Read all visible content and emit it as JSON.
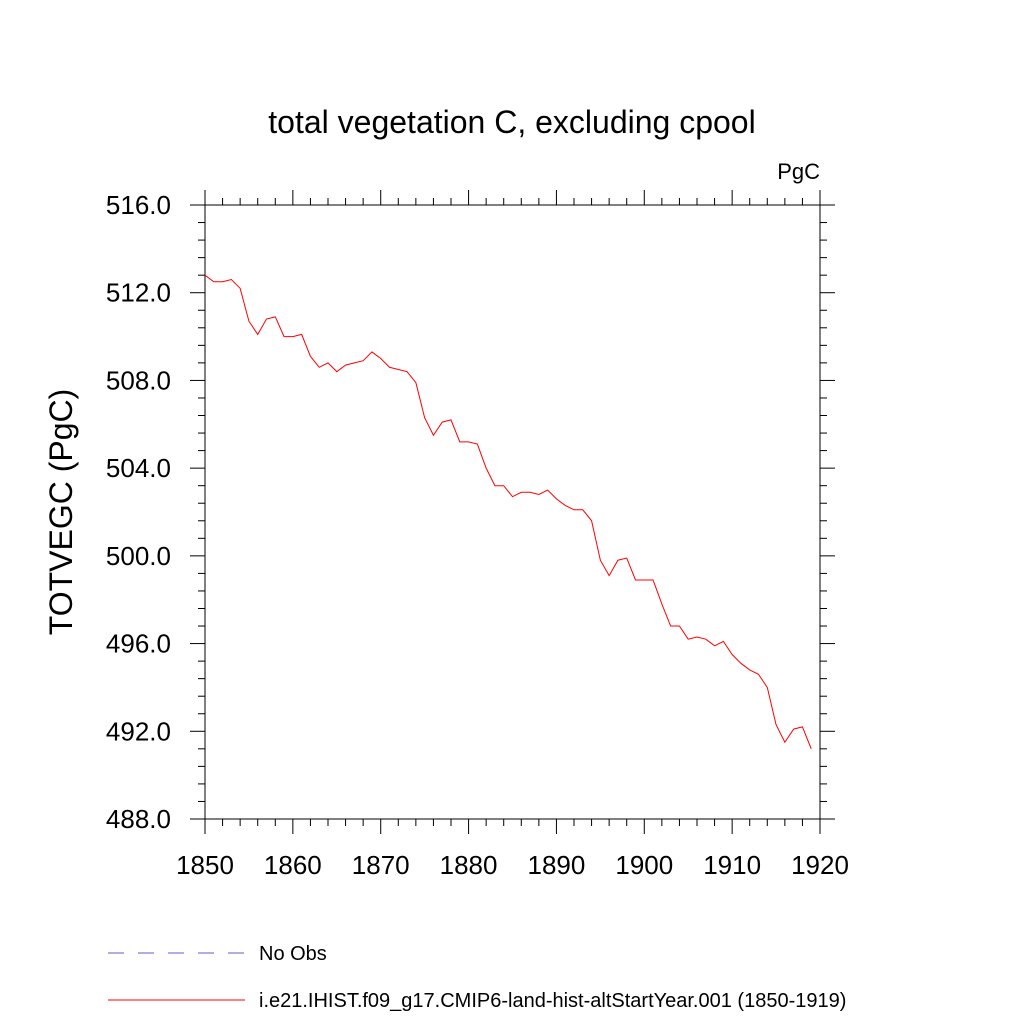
{
  "chart_data": {
    "type": "line",
    "title": "total vegetation C, excluding cpool",
    "units": "PgC",
    "ylabel": "TOTVEGC  (PgC)",
    "xlabel": "",
    "xlim": [
      1850,
      1920
    ],
    "ylim": [
      488.0,
      516.0
    ],
    "x_ticks": [
      1850,
      1860,
      1870,
      1880,
      1890,
      1900,
      1910,
      1920
    ],
    "x_tick_labels": [
      "1850",
      "1860",
      "1870",
      "1880",
      "1890",
      "1900",
      "1910",
      "1920"
    ],
    "y_ticks": [
      488,
      492,
      496,
      500,
      504,
      508,
      512,
      516
    ],
    "y_tick_labels": [
      "488.0",
      "492.0",
      "496.0",
      "500.0",
      "504.0",
      "508.0",
      "512.0",
      "516.0"
    ],
    "grid": false,
    "legend_position": "bottom",
    "series": [
      {
        "name": "i.e21.IHIST.f09_g17.CMIP6-land-hist-altStartYear.001 (1850-1919)",
        "color": "#ff0000",
        "style": "solid",
        "x": [
          1850,
          1851,
          1852,
          1853,
          1854,
          1855,
          1856,
          1857,
          1858,
          1859,
          1860,
          1861,
          1862,
          1863,
          1864,
          1865,
          1866,
          1867,
          1868,
          1869,
          1870,
          1871,
          1872,
          1873,
          1874,
          1875,
          1876,
          1877,
          1878,
          1879,
          1880,
          1881,
          1882,
          1883,
          1884,
          1885,
          1886,
          1887,
          1888,
          1889,
          1890,
          1891,
          1892,
          1893,
          1894,
          1895,
          1896,
          1897,
          1898,
          1899,
          1900,
          1901,
          1902,
          1903,
          1904,
          1905,
          1906,
          1907,
          1908,
          1909,
          1910,
          1911,
          1912,
          1913,
          1914,
          1915,
          1916,
          1917,
          1918,
          1919
        ],
        "values": [
          512.8,
          512.5,
          512.5,
          512.6,
          512.2,
          510.7,
          510.1,
          510.8,
          510.9,
          510.0,
          510.0,
          510.1,
          509.1,
          508.6,
          508.8,
          508.4,
          508.7,
          508.8,
          508.9,
          509.3,
          509.0,
          508.6,
          508.5,
          508.4,
          507.9,
          506.3,
          505.5,
          506.1,
          506.2,
          505.2,
          505.2,
          505.1,
          504.0,
          503.2,
          503.2,
          502.7,
          502.9,
          502.9,
          502.8,
          503.0,
          502.6,
          502.3,
          502.1,
          502.1,
          501.6,
          499.8,
          499.1,
          499.8,
          499.9,
          498.9,
          498.9,
          498.9,
          497.8,
          496.8,
          496.8,
          496.2,
          496.3,
          496.2,
          495.9,
          496.1,
          495.5,
          495.1,
          494.8,
          494.6,
          494.0,
          492.3,
          491.5,
          492.1,
          492.2,
          491.2
        ]
      },
      {
        "name": "No Obs",
        "color": "#6a5acd",
        "style": "dashed",
        "x": [],
        "values": []
      }
    ]
  }
}
